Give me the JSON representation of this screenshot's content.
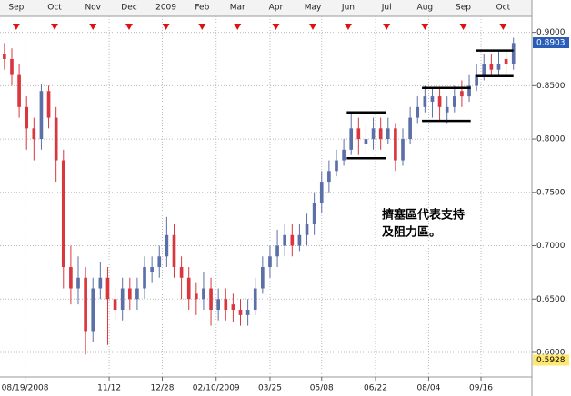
{
  "chart_data": {
    "type": "candlestick",
    "open": [
      0.88,
      0.875,
      0.86,
      0.83,
      0.81,
      0.8,
      0.845,
      0.82,
      0.78,
      0.68,
      0.66,
      0.67,
      0.62,
      0.66,
      0.67,
      0.65,
      0.64,
      0.66,
      0.65,
      0.66,
      0.675,
      0.68,
      0.69,
      0.71,
      0.68,
      0.67,
      0.655,
      0.65,
      0.66,
      0.64,
      0.65,
      0.645,
      0.64,
      0.635,
      0.64,
      0.66,
      0.68,
      0.69,
      0.7,
      0.71,
      0.7,
      0.71,
      0.72,
      0.74,
      0.76,
      0.77,
      0.78,
      0.79,
      0.81,
      0.795,
      0.8,
      0.81,
      0.8,
      0.81,
      0.78,
      0.8,
      0.82,
      0.83,
      0.835,
      0.84,
      0.825,
      0.83,
      0.845,
      0.84,
      0.85,
      0.86,
      0.87,
      0.865,
      0.875,
      0.87
    ],
    "high": [
      0.89,
      0.885,
      0.87,
      0.84,
      0.82,
      0.852,
      0.85,
      0.83,
      0.79,
      0.7,
      0.69,
      0.68,
      0.67,
      0.685,
      0.68,
      0.66,
      0.67,
      0.67,
      0.67,
      0.69,
      0.69,
      0.7,
      0.727,
      0.72,
      0.69,
      0.68,
      0.665,
      0.675,
      0.67,
      0.66,
      0.66,
      0.655,
      0.65,
      0.65,
      0.67,
      0.69,
      0.7,
      0.715,
      0.72,
      0.72,
      0.72,
      0.73,
      0.75,
      0.77,
      0.78,
      0.79,
      0.8,
      0.825,
      0.82,
      0.815,
      0.82,
      0.82,
      0.82,
      0.815,
      0.81,
      0.83,
      0.84,
      0.85,
      0.848,
      0.848,
      0.84,
      0.85,
      0.855,
      0.86,
      0.87,
      0.88,
      0.88,
      0.883,
      0.883,
      0.895
    ],
    "low": [
      0.865,
      0.85,
      0.82,
      0.79,
      0.78,
      0.79,
      0.81,
      0.76,
      0.66,
      0.645,
      0.645,
      0.598,
      0.61,
      0.65,
      0.607,
      0.63,
      0.63,
      0.64,
      0.64,
      0.65,
      0.665,
      0.67,
      0.68,
      0.67,
      0.65,
      0.64,
      0.635,
      0.64,
      0.625,
      0.63,
      0.63,
      0.628,
      0.625,
      0.625,
      0.635,
      0.655,
      0.67,
      0.68,
      0.69,
      0.69,
      0.695,
      0.7,
      0.71,
      0.73,
      0.75,
      0.765,
      0.775,
      0.785,
      0.785,
      0.785,
      0.79,
      0.79,
      0.795,
      0.77,
      0.775,
      0.795,
      0.815,
      0.825,
      0.82,
      0.817,
      0.815,
      0.825,
      0.83,
      0.835,
      0.845,
      0.855,
      0.86,
      0.86,
      0.86,
      0.865
    ],
    "close": [
      0.875,
      0.86,
      0.83,
      0.81,
      0.8,
      0.845,
      0.82,
      0.78,
      0.68,
      0.66,
      0.67,
      0.62,
      0.66,
      0.67,
      0.65,
      0.64,
      0.66,
      0.65,
      0.66,
      0.68,
      0.68,
      0.69,
      0.71,
      0.68,
      0.67,
      0.65,
      0.65,
      0.66,
      0.64,
      0.65,
      0.64,
      0.64,
      0.635,
      0.64,
      0.66,
      0.68,
      0.69,
      0.7,
      0.71,
      0.7,
      0.71,
      0.72,
      0.74,
      0.76,
      0.77,
      0.78,
      0.79,
      0.81,
      0.8,
      0.8,
      0.81,
      0.8,
      0.81,
      0.78,
      0.8,
      0.82,
      0.83,
      0.84,
      0.84,
      0.83,
      0.83,
      0.84,
      0.84,
      0.85,
      0.86,
      0.87,
      0.865,
      0.87,
      0.87,
      0.89
    ],
    "up_color": "#5b6fa8",
    "down_color": "#d9363e",
    "ylim": [
      0.577,
      0.915
    ],
    "yticks": [
      {
        "value": 0.9,
        "label": "0.9000"
      },
      {
        "value": 0.85,
        "label": "0.8500"
      },
      {
        "value": 0.8,
        "label": "0.8000"
      },
      {
        "value": 0.75,
        "label": "0.7500"
      },
      {
        "value": 0.7,
        "label": "0.7000"
      },
      {
        "value": 0.65,
        "label": "0.6500"
      },
      {
        "value": 0.6,
        "label": "0.6000"
      }
    ],
    "xlim": [
      -0.6,
      71.5
    ],
    "xticks": [
      {
        "value": 2.8,
        "label": "08/19/2008"
      },
      {
        "value": 14.2,
        "label": "11/12"
      },
      {
        "value": 21.4,
        "label": "12/28"
      },
      {
        "value": 28.7,
        "label": "02/10/2009"
      },
      {
        "value": 36,
        "label": "03/25"
      },
      {
        "value": 43,
        "label": "05/08"
      },
      {
        "value": 50.3,
        "label": "06/22"
      },
      {
        "value": 57.5,
        "label": "08/04"
      },
      {
        "value": 64.6,
        "label": "09/16"
      }
    ],
    "month_ticks": [
      {
        "value": 1.6,
        "label": "Sep"
      },
      {
        "value": 6.8,
        "label": "Oct"
      },
      {
        "value": 12,
        "label": "Nov"
      },
      {
        "value": 16.9,
        "label": "Dec"
      },
      {
        "value": 21.9,
        "label": "2009"
      },
      {
        "value": 26.8,
        "label": "Feb"
      },
      {
        "value": 31.6,
        "label": "Mar"
      },
      {
        "value": 36.8,
        "label": "Apr"
      },
      {
        "value": 41.8,
        "label": "May"
      },
      {
        "value": 46.6,
        "label": "Jun"
      },
      {
        "value": 51.8,
        "label": "Jul"
      },
      {
        "value": 57,
        "label": "Aug"
      },
      {
        "value": 62.2,
        "label": "Sep"
      },
      {
        "value": 67.6,
        "label": "Oct"
      }
    ],
    "last_price": {
      "value": 0.8903,
      "label": "0.8903"
    },
    "low_price": {
      "value": 0.5928,
      "label": "0.5928"
    },
    "zones": [
      {
        "high": 0.825,
        "low": 0.782,
        "from": 46.4,
        "to": 51.7
      },
      {
        "high": 0.848,
        "low": 0.817,
        "from": 56.6,
        "to": 63.2
      },
      {
        "high": 0.883,
        "low": 0.859,
        "from": 63.9,
        "to": 69
      }
    ],
    "grid": true,
    "annotation": [
      "擠塞區代表支持",
      "及阻力區。"
    ]
  }
}
